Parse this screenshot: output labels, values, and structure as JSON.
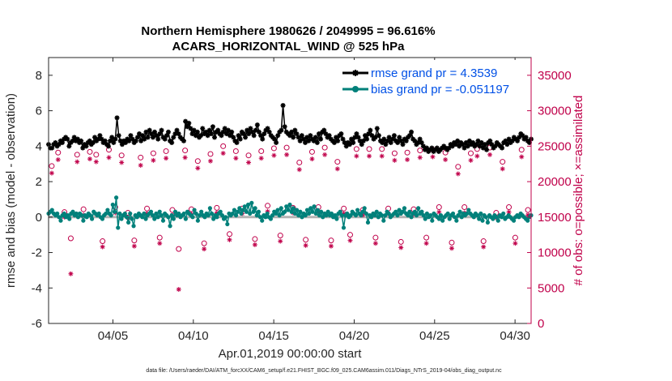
{
  "chart_data": {
    "type": "line",
    "title": "Northern Hemisphere 1980626 / 2049995 = 96.616%",
    "subtitle": "ACARS_HORIZONTAL_WIND @ 525 hPa",
    "xlabel": "Apr.01,2019 00:00:00 start",
    "ylabel_left": "rmse and bias (model - observation)",
    "ylabel_right": "# of obs: o=possible; ×=assimilated",
    "xlim": [
      1,
      31
    ],
    "ylim_left": [
      -6,
      9
    ],
    "ylim_right": [
      0,
      37500
    ],
    "x_ticks": [
      5,
      10,
      15,
      20,
      25,
      30
    ],
    "x_tick_labels": [
      "04/05",
      "04/10",
      "04/15",
      "04/20",
      "04/25",
      "04/30"
    ],
    "y_left_ticks": [
      -6,
      -4,
      -2,
      0,
      2,
      4,
      6,
      8
    ],
    "y_right_ticks": [
      0,
      5000,
      10000,
      15000,
      20000,
      25000,
      30000,
      35000
    ],
    "footer": "data file: /Users/raeder/DAI/ATM_forcXX/CAM6_setup/f.e21.FHIST_BGC.f09_025.CAM6assim.011/Diags_NTrS_2019-04/obs_diag_output.nc",
    "colors": {
      "rmse": "#000000",
      "bias": "#00807a",
      "obs": "#c0004a",
      "legend_text": "#0050e6",
      "zero_line": "#b3b3b3"
    },
    "series": [
      {
        "name": "rmse grand pr = 4.3539",
        "marker": "star",
        "values": [
          4.1,
          3.9,
          3.9,
          4.1,
          4.2,
          4.0,
          4.1,
          4.3,
          4.2,
          4.4,
          4.5,
          4.4,
          4.0,
          4.2,
          4.3,
          4.5,
          4.3,
          4.4,
          4.2,
          4.3,
          3.9,
          4.1,
          4.0,
          4.2,
          4.3,
          4.1,
          4.2,
          4.5,
          4.3,
          4.4,
          4.6,
          4.4,
          4.2,
          4.3,
          4.1,
          4.0,
          4.3,
          4.5,
          4.2,
          4.4,
          5.6,
          4.6,
          4.3,
          4.1,
          4.3,
          4.2,
          4.4,
          4.3,
          4.6,
          4.4,
          4.2,
          4.3,
          4.5,
          4.7,
          4.3,
          4.6,
          4.4,
          4.8,
          4.5,
          4.9,
          4.7,
          4.5,
          4.8,
          4.6,
          4.4,
          4.7,
          4.9,
          4.5,
          4.4,
          4.6,
          4.8,
          4.3,
          4.2,
          4.5,
          4.7,
          4.9,
          4.7,
          4.5,
          4.4,
          4.3,
          5.4,
          5.1,
          5.3,
          5.0,
          4.7,
          4.9,
          4.6,
          4.8,
          4.5,
          4.6,
          5.0,
          4.7,
          4.8,
          4.6,
          4.9,
          4.7,
          5.1,
          4.5,
          4.8,
          4.9,
          4.7,
          4.6,
          4.8,
          5.0,
          4.7,
          4.9,
          4.6,
          4.8,
          4.5,
          4.3,
          4.2,
          4.6,
          4.4,
          4.8,
          4.7,
          4.5,
          4.9,
          4.7,
          5.0,
          4.8,
          4.6,
          4.9,
          5.2,
          4.8,
          4.6,
          4.4,
          4.7,
          4.9,
          5.0,
          4.8,
          4.6,
          4.5,
          4.4,
          4.2,
          4.6,
          4.8,
          4.9,
          6.3,
          5.1,
          4.8,
          4.7,
          4.6,
          4.8,
          4.5,
          4.9,
          4.7,
          4.5,
          4.3,
          4.6,
          4.4,
          4.2,
          4.5,
          4.3,
          4.6,
          4.4,
          4.3,
          4.5,
          4.2,
          4.7,
          4.4,
          4.8,
          4.9,
          4.7,
          4.5,
          4.6,
          4.4,
          4.3,
          4.2,
          4.5,
          4.3,
          4.6,
          4.7,
          4.4,
          4.2,
          4.0,
          4.2,
          4.1,
          4.4,
          4.2,
          4.5,
          4.7,
          4.5,
          4.3,
          4.1,
          4.3,
          4.6,
          4.4,
          4.7,
          4.9,
          4.6,
          4.4,
          4.5,
          5.0,
          4.6,
          4.3,
          4.2,
          4.4,
          4.1,
          4.3,
          4.5,
          4.2,
          4.4,
          4.6,
          4.3,
          4.2,
          4.5,
          4.3,
          4.1,
          4.4,
          4.3,
          4.5,
          4.6,
          4.8,
          4.4,
          4.3,
          4.1,
          4.2,
          4.4,
          4.2,
          4.0,
          3.8,
          3.9,
          3.7,
          3.8,
          3.9,
          3.7,
          3.8,
          3.9,
          3.7,
          3.8,
          3.9,
          4.0,
          3.9,
          3.8,
          3.9,
          4.1,
          4.0,
          4.2,
          4.1,
          4.3,
          4.0,
          4.2,
          4.1,
          3.9,
          4.2,
          4.0,
          4.3,
          4.1,
          4.2,
          4.0,
          4.1,
          4.3,
          4.0,
          4.2,
          3.9,
          4.1,
          3.8,
          4.2,
          4.3,
          4.1,
          3.9,
          4.0,
          4.2,
          4.1,
          4.0,
          3.9,
          4.2,
          4.3,
          4.1,
          4.4,
          4.2,
          4.3,
          4.5,
          4.4,
          4.3,
          4.5,
          4.7,
          4.6,
          4.4,
          4.5,
          4.3,
          4.2,
          4.4
        ]
      },
      {
        "name": "bias grand pr = -0.051197",
        "marker": "circle",
        "values": [
          0.2,
          0.3,
          0.4,
          0.2,
          0.1,
          0.2,
          0.0,
          -0.2,
          0.1,
          0.2,
          0.0,
          0.1,
          -0.1,
          0.2,
          0.3,
          0.1,
          0.2,
          0.0,
          0.2,
          0.1,
          -0.2,
          0.1,
          0.0,
          0.2,
          0.1,
          -0.1,
          0.3,
          0.2,
          0.1,
          0.2,
          0.0,
          -0.1,
          0.1,
          0.2,
          0.4,
          0.2,
          0.1,
          0.7,
          0.3,
          1.1,
          -0.6,
          0.2,
          -0.1,
          0.1,
          0.2,
          0.0,
          -0.3,
          0.2,
          -0.1,
          -0.5,
          0.1,
          0.0,
          0.2,
          0.1,
          0.0,
          0.2,
          -0.1,
          0.1,
          0.2,
          0.3,
          0.1,
          -0.1,
          0.2,
          0.0,
          0.3,
          0.1,
          -0.2,
          0.2,
          0.1,
          0.0,
          -0.5,
          0.1,
          -0.1,
          0.3,
          0.1,
          0.2,
          0.0,
          0.1,
          0.2,
          -0.1,
          0.3,
          0.2,
          0.1,
          0.0,
          0.4,
          0.2,
          -0.2,
          0.1,
          0.3,
          0.1,
          0.0,
          0.2,
          0.1,
          0.5,
          0.2,
          -0.1,
          0.1,
          0.0,
          0.2,
          0.3,
          0.1,
          -0.1,
          0.0,
          -0.4,
          0.2,
          0.1,
          0.2,
          0.4,
          0.1,
          0.3,
          0.5,
          0.2,
          0.4,
          0.6,
          0.3,
          0.7,
          0.2,
          0.8,
          0.3,
          0.5,
          0.1,
          0.3,
          0.0,
          -0.2,
          0.1,
          0.0,
          0.2,
          0.0,
          -0.1,
          0.1,
          0.3,
          0.2,
          0.4,
          0.1,
          0.5,
          0.2,
          0.3,
          0.6,
          0.4,
          0.7,
          0.3,
          0.5,
          0.2,
          0.4,
          0.1,
          0.3,
          0.0,
          0.2,
          0.1,
          0.4,
          0.2,
          0.5,
          0.3,
          0.6,
          0.2,
          0.4,
          0.1,
          0.3,
          0.0,
          0.2,
          0.1,
          0.3,
          0.1,
          0.2,
          0.0,
          0.1,
          -0.1,
          0.2,
          0.3,
          0.1,
          -0.6,
          0.1,
          0.2,
          0.0,
          0.1,
          0.3,
          0.2,
          0.1,
          0.4,
          0.2,
          0.1,
          0.3,
          0.5,
          0.2,
          -0.3,
          0.1,
          0.0,
          0.2,
          0.1,
          0.3,
          0.0,
          0.2,
          0.1,
          -0.2,
          0.1,
          0.3,
          0.2,
          0.0,
          0.1,
          0.2,
          0.3,
          0.1,
          0.4,
          0.2,
          0.3,
          0.5,
          0.2,
          0.1,
          0.3,
          0.0,
          0.2,
          0.3,
          0.1,
          0.5,
          0.2,
          0.3,
          0.1,
          -0.1,
          0.2,
          0.0,
          0.1,
          -0.2,
          0.2,
          0.1,
          0.0,
          -0.1,
          0.1,
          -0.2,
          0.0,
          0.1,
          0.2,
          -0.1,
          0.1,
          0.2,
          0.0,
          -0.2,
          0.1,
          0.3,
          0.0,
          0.2,
          0.1,
          0.2,
          0.4,
          0.2,
          0.1,
          0.0,
          0.2,
          0.1,
          -0.1,
          0.2,
          -0.2,
          0.1,
          0.0,
          -0.3,
          0.1,
          0.0,
          -0.1,
          0.1,
          0.0,
          -0.2,
          0.1,
          0.0,
          0.2,
          -0.1,
          0.0,
          0.1,
          0.0,
          -0.1,
          -0.2,
          0.0,
          0.1,
          0.0,
          0.2,
          0.1,
          0.0,
          -0.1,
          -0.2,
          0.0,
          0.1
        ]
      },
      {
        "name": "obs possible",
        "marker": "open-circle",
        "values": [
          22200,
          24100,
          15700,
          12000,
          23800,
          16100,
          24200,
          23800,
          11600,
          24500,
          16400,
          23700,
          15600,
          11700,
          23400,
          16200,
          24000,
          12100,
          24300,
          16000,
          10500,
          24400,
          16100,
          22900,
          11300,
          23900,
          16300,
          25000,
          12600,
          24300,
          16200,
          23700,
          11900,
          24300,
          16600,
          24700,
          12400,
          24800,
          16300,
          22700,
          11800,
          24200,
          16400,
          24800,
          11700,
          22800,
          16200,
          12500,
          24600,
          16000,
          24600,
          12100,
          24600,
          16200,
          24000,
          11500,
          24100,
          16100,
          24400,
          12100,
          24500,
          16400,
          24100,
          11400,
          22100,
          16400,
          24000,
          24600,
          11600,
          24800,
          15600,
          22800,
          16400,
          12100,
          24500,
          16000
        ]
      },
      {
        "name": "obs assimilated",
        "marker": "star",
        "values": [
          21200,
          23100,
          15000,
          7000,
          22800,
          15300,
          23200,
          22800,
          10800,
          23400,
          15600,
          22700,
          14900,
          10900,
          22300,
          15500,
          23000,
          11300,
          23300,
          15300,
          4800,
          23400,
          15400,
          21900,
          10500,
          22900,
          15600,
          24000,
          11800,
          23300,
          15500,
          22700,
          11100,
          23300,
          15800,
          23700,
          11600,
          23800,
          15600,
          21700,
          11000,
          23200,
          15700,
          23800,
          10900,
          21800,
          15500,
          11700,
          23600,
          15300,
          23600,
          11300,
          23600,
          15500,
          23000,
          10700,
          23100,
          15400,
          23400,
          11300,
          23500,
          15700,
          23100,
          10600,
          21100,
          15600,
          23000,
          23600,
          10800,
          23800,
          14900,
          21800,
          15700,
          11300,
          23500,
          15300
        ]
      }
    ]
  }
}
